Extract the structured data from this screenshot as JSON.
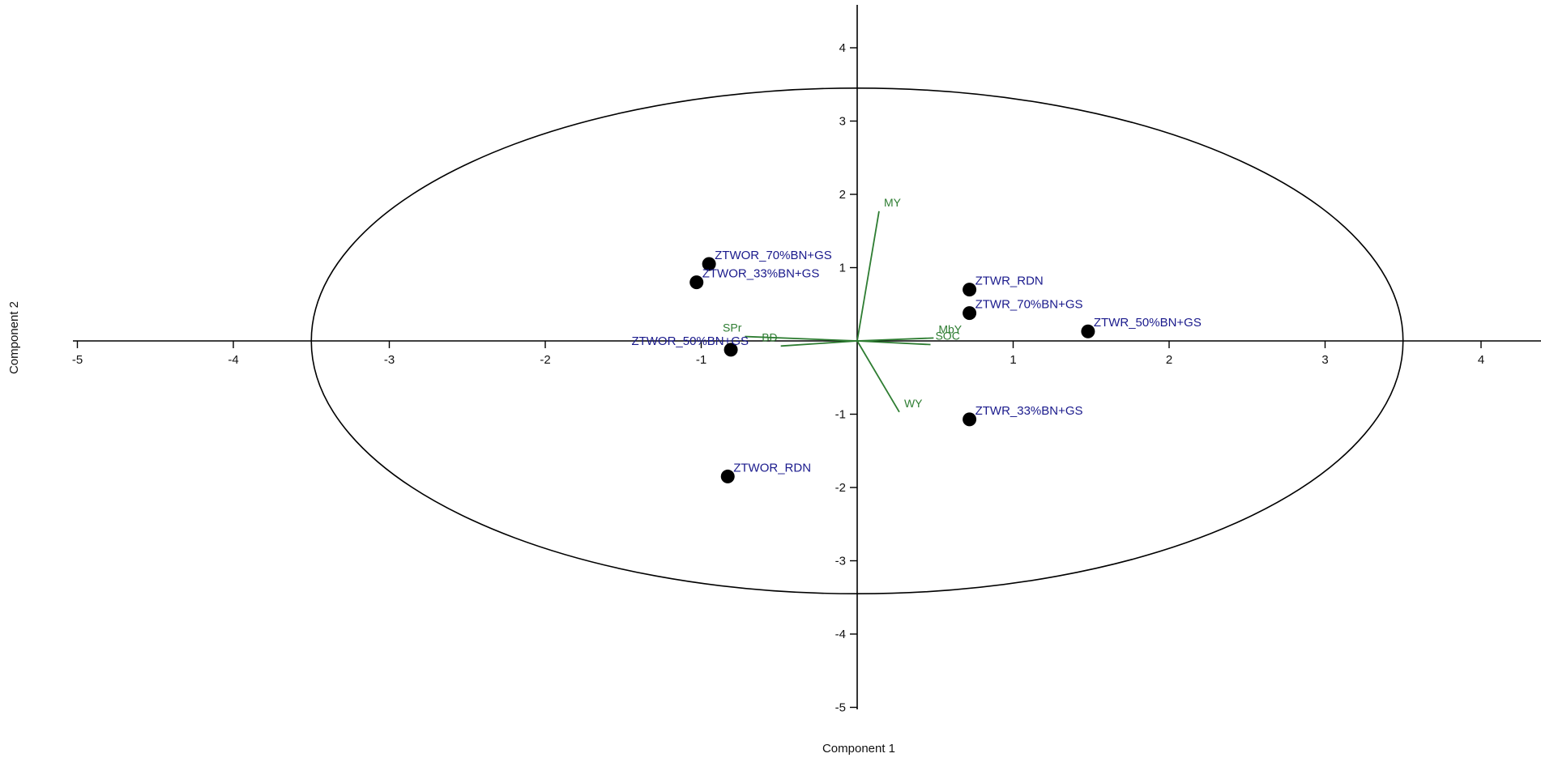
{
  "chart_data": {
    "type": "scatter",
    "subtype": "pca-biplot",
    "title": "",
    "xlabel": "Component 1",
    "ylabel": "Component 2",
    "xlim": [
      -5,
      4.4
    ],
    "ylim": [
      -5,
      4.5
    ],
    "x_ticks": [
      -5,
      -4,
      -3,
      -2,
      -1,
      1,
      2,
      3,
      4
    ],
    "y_ticks": [
      -5,
      -4,
      -3,
      -2,
      -1,
      1,
      2,
      3,
      4
    ],
    "grid": false,
    "confidence_ellipse": {
      "rx": 3.5,
      "ry": 3.45,
      "color": "#000000"
    },
    "points": [
      {
        "label": "ZTWOR_70%BN+GS",
        "x": -0.95,
        "y": 1.05
      },
      {
        "label": "ZTWOR_33%BN+GS",
        "x": -1.03,
        "y": 0.8
      },
      {
        "label": "ZTWOR_50%BN+GS",
        "x": -0.81,
        "y": -0.12
      },
      {
        "label": "ZTWOR_RDN",
        "x": -0.83,
        "y": -1.85
      },
      {
        "label": "ZTWR_RDN",
        "x": 0.72,
        "y": 0.7
      },
      {
        "label": "ZTWR_70%BN+GS",
        "x": 0.72,
        "y": 0.38
      },
      {
        "label": "ZTWR_50%BN+GS",
        "x": 1.48,
        "y": 0.13
      },
      {
        "label": "ZTWR_33%BN+GS",
        "x": 0.72,
        "y": -1.07
      }
    ],
    "loadings": [
      {
        "label": "MY",
        "x": 0.14,
        "y": 1.77
      },
      {
        "label": "WY",
        "x": 0.27,
        "y": -0.97
      },
      {
        "label": "MbY",
        "x": 0.49,
        "y": 0.04
      },
      {
        "label": "SOC",
        "x": 0.47,
        "y": -0.05
      },
      {
        "label": "SPr",
        "x": -0.72,
        "y": 0.06
      },
      {
        "label": "BD",
        "x": -0.49,
        "y": -0.07
      }
    ],
    "colors": {
      "points": "#000000",
      "point_labels": "#1a1a8c",
      "loadings": "#2e7d32",
      "axes": "#000000"
    }
  }
}
